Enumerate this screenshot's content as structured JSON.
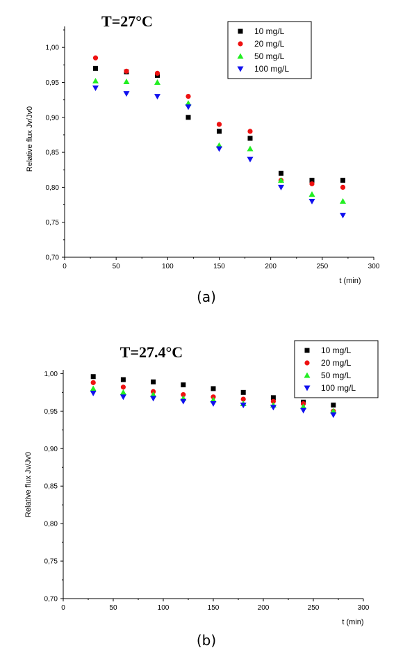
{
  "chart_data": [
    {
      "type": "scatter",
      "panel_label": "(a)",
      "title": "T=27°C",
      "xlabel": "t  (min)",
      "ylabel": "Relative flux Jv/Jv0",
      "xlim": [
        0,
        300
      ],
      "ylim": [
        0.7,
        1.03
      ],
      "xticks": [
        "0",
        "50",
        "100",
        "150",
        "200",
        "250",
        "300"
      ],
      "yticks": [
        "0,70",
        "0,75",
        "0,80",
        "0,85",
        "0,90",
        "0,95",
        "1,00"
      ],
      "legend_position": "top-right",
      "x": [
        30,
        60,
        90,
        120,
        150,
        180,
        210,
        240,
        270
      ],
      "series": [
        {
          "name": "10  mg/L",
          "marker": "square",
          "color": "#000000",
          "values": [
            0.97,
            0.965,
            0.96,
            0.9,
            0.88,
            0.87,
            0.82,
            0.81,
            0.81
          ]
        },
        {
          "name": "20  mg/L",
          "marker": "circle",
          "color": "#ee1111",
          "values": [
            0.985,
            0.966,
            0.963,
            0.93,
            0.89,
            0.88,
            0.81,
            0.805,
            0.8
          ]
        },
        {
          "name": "50  mg/L",
          "marker": "triangle-up",
          "color": "#22ee22",
          "values": [
            0.952,
            0.951,
            0.95,
            0.92,
            0.86,
            0.855,
            0.81,
            0.79,
            0.78
          ]
        },
        {
          "name": "100  mg/L",
          "marker": "triangle-down",
          "color": "#1111ee",
          "values": [
            0.942,
            0.934,
            0.93,
            0.915,
            0.855,
            0.84,
            0.8,
            0.78,
            0.76
          ]
        }
      ]
    },
    {
      "type": "scatter",
      "panel_label": "(b)",
      "title": "T=27.4°C",
      "xlabel": "t  (min)",
      "ylabel": "Relative flux Jv/Jv0",
      "xlim": [
        0,
        300
      ],
      "ylim": [
        0.7,
        1.005
      ],
      "xticks": [
        "0",
        "50",
        "100",
        "150",
        "200",
        "250",
        "300"
      ],
      "yticks": [
        "0,70",
        "0,75",
        "0,80",
        "0,85",
        "0,90",
        "0,95",
        "1,00"
      ],
      "legend_position": "top-right",
      "x": [
        30,
        60,
        90,
        120,
        150,
        180,
        210,
        240,
        270
      ],
      "series": [
        {
          "name": "10  mg/L",
          "marker": "square",
          "color": "#000000",
          "values": [
            0.996,
            0.992,
            0.989,
            0.985,
            0.98,
            0.975,
            0.968,
            0.962,
            0.958
          ]
        },
        {
          "name": "20  mg/L",
          "marker": "circle",
          "color": "#ee1111",
          "values": [
            0.988,
            0.982,
            0.976,
            0.972,
            0.969,
            0.966,
            0.963,
            0.96,
            0.95
          ]
        },
        {
          "name": "50  mg/L",
          "marker": "triangle-up",
          "color": "#22ee22",
          "values": [
            0.98,
            0.975,
            0.972,
            0.967,
            0.965,
            0.96,
            0.958,
            0.956,
            0.95
          ]
        },
        {
          "name": "100  mg/L",
          "marker": "triangle-down",
          "color": "#1111ee",
          "values": [
            0.974,
            0.969,
            0.967,
            0.963,
            0.96,
            0.958,
            0.955,
            0.951,
            0.945
          ]
        }
      ]
    }
  ]
}
